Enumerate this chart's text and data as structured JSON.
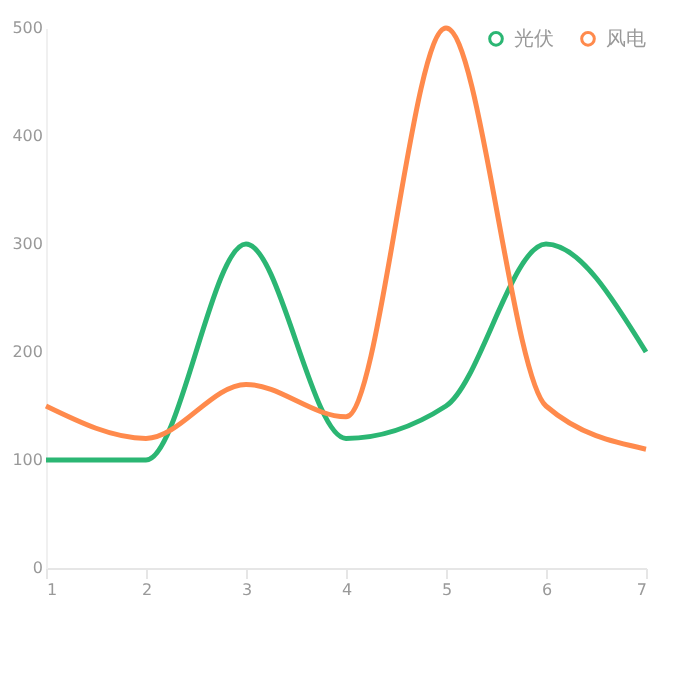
{
  "chart_data": {
    "type": "line",
    "x": [
      1,
      2,
      3,
      4,
      5,
      6,
      7
    ],
    "xlim": [
      1,
      7
    ],
    "xticks": [
      1,
      2,
      3,
      4,
      5,
      6,
      7
    ],
    "ylim": [
      0,
      500
    ],
    "yticks": [
      0,
      100,
      200,
      300,
      400,
      500
    ],
    "grid": false,
    "legend": "top right",
    "marker": "none",
    "line_style": "solid",
    "series": [
      {
        "name": "光伏",
        "color": "#2bb673",
        "values": [
          100,
          100,
          300,
          120,
          150,
          300,
          200
        ]
      },
      {
        "name": "风电",
        "color": "#ff8a4c",
        "values": [
          150,
          120,
          170,
          140,
          500,
          150,
          110
        ]
      }
    ]
  }
}
